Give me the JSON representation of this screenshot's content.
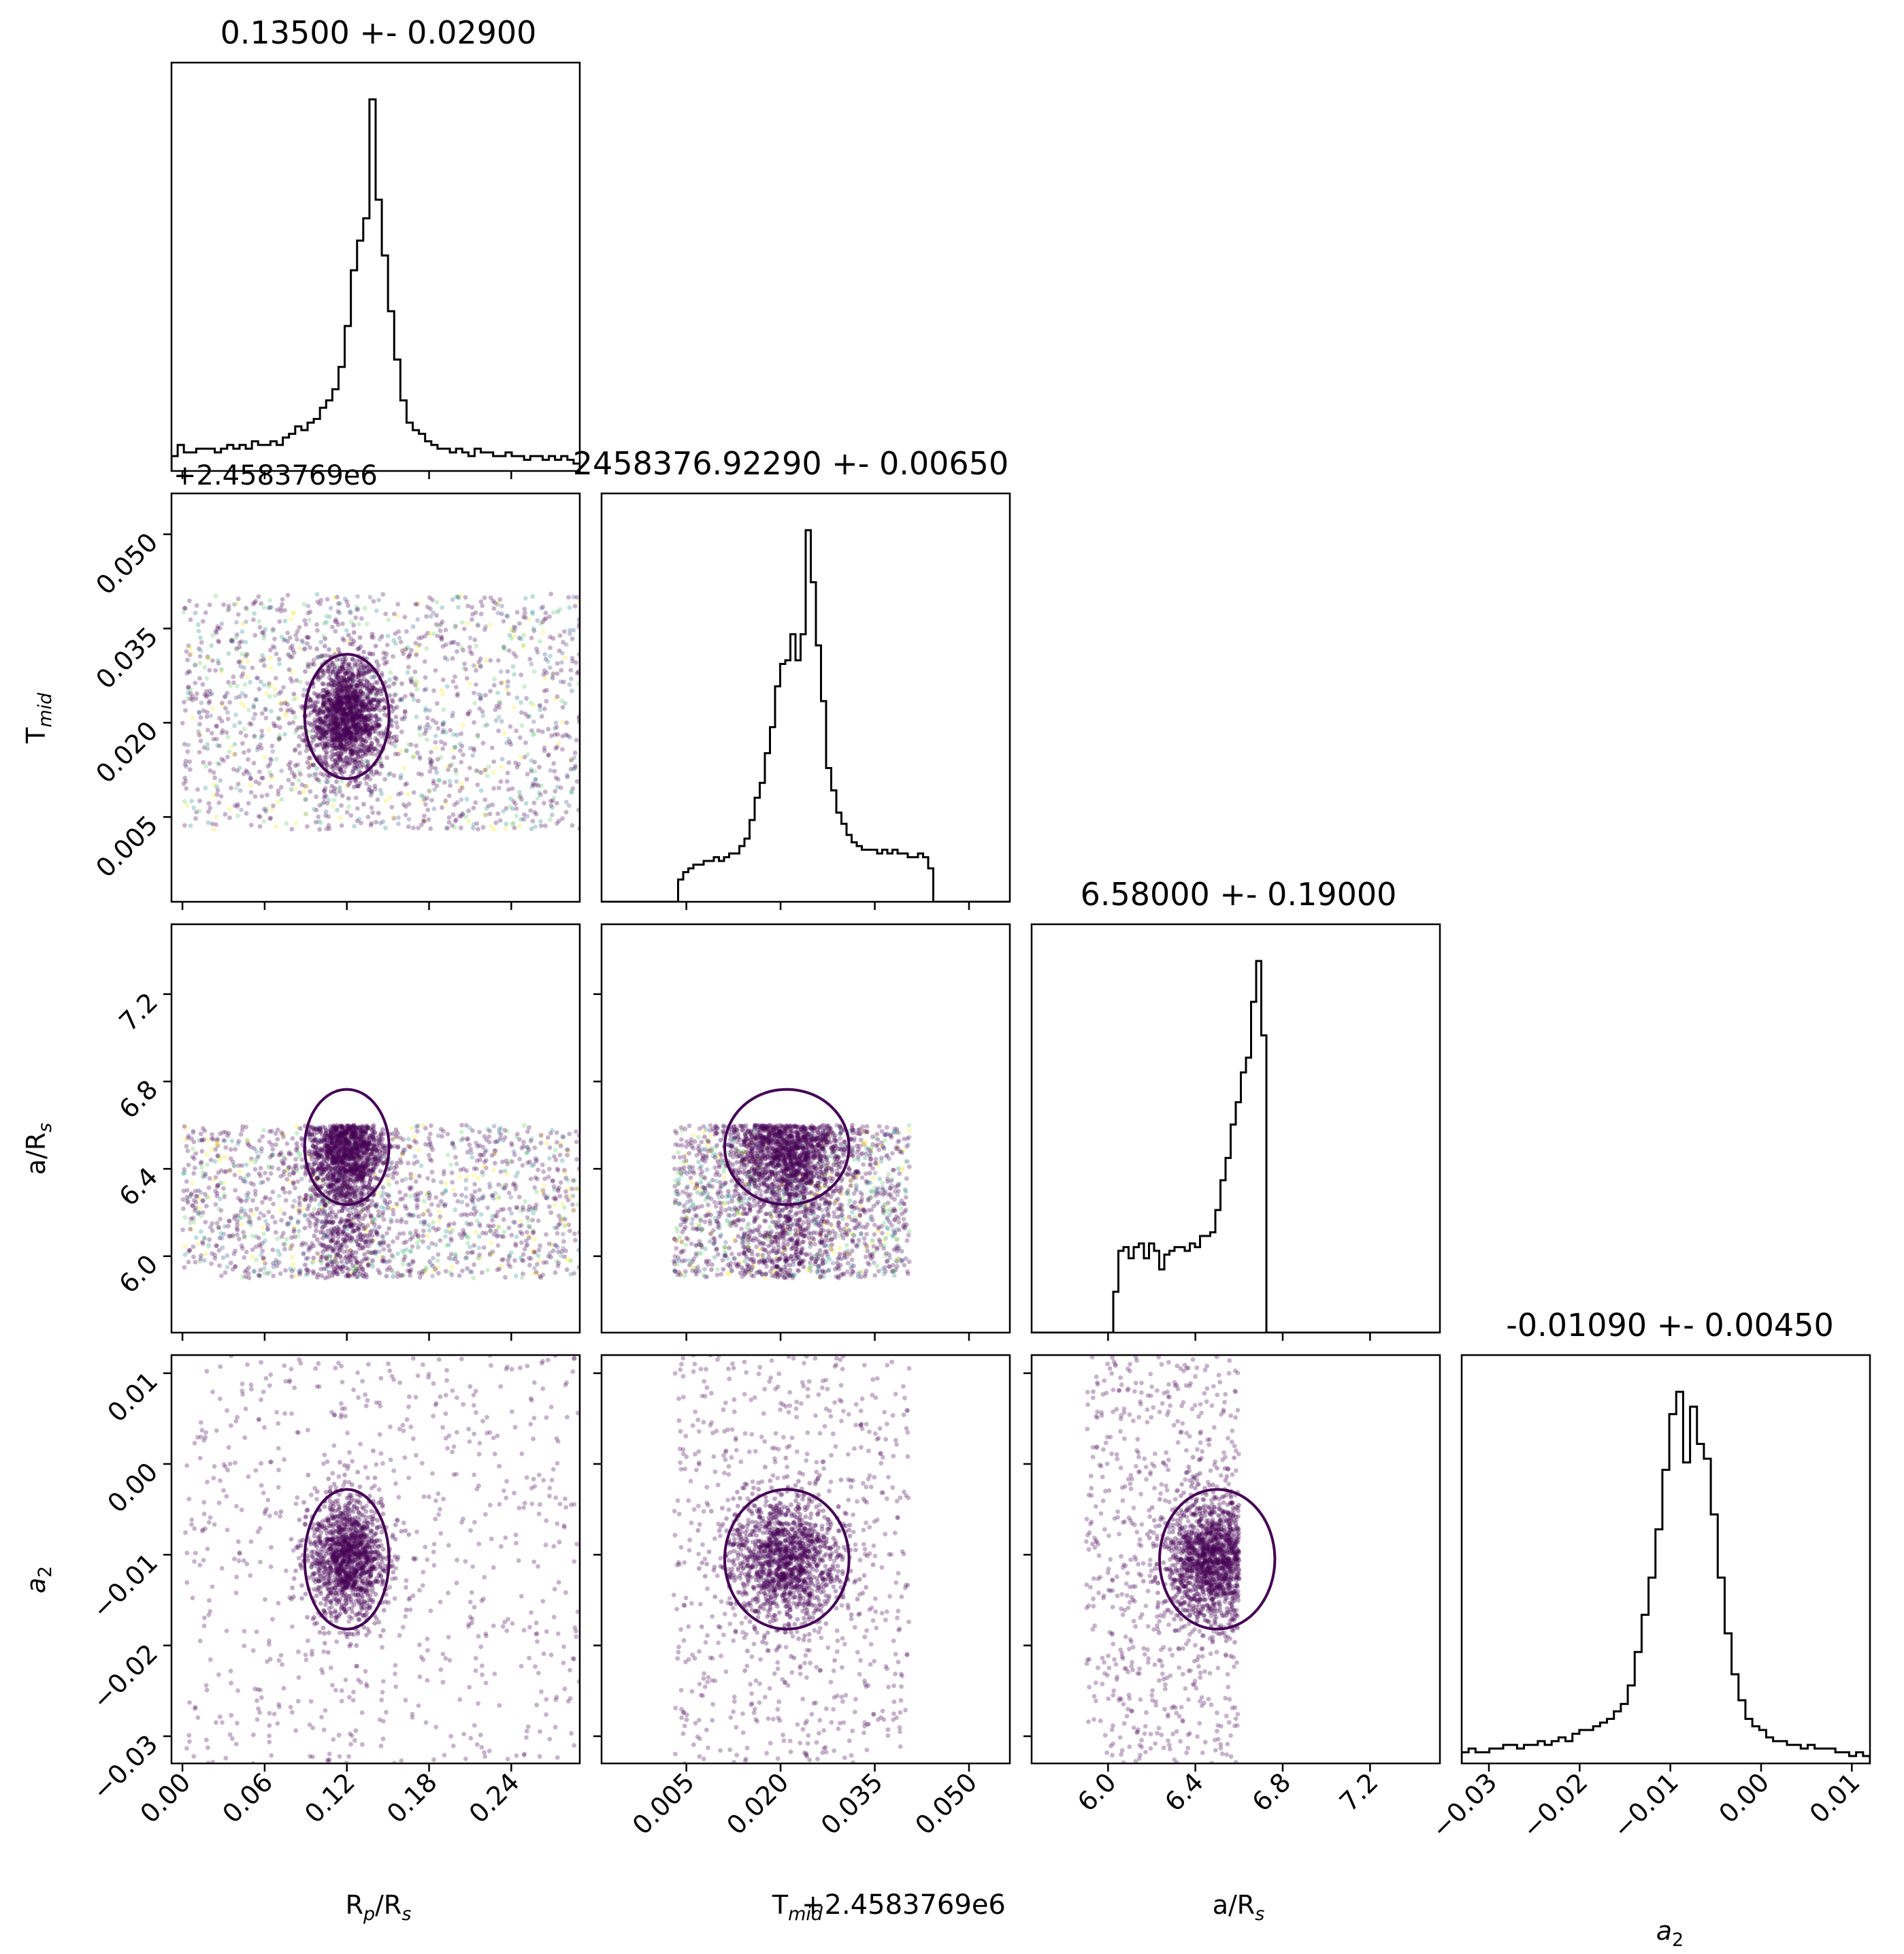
{
  "chart_data": {
    "type": "corner",
    "parameters": [
      {
        "key": "rp",
        "title": "0.13500 +- 0.02900",
        "label_main": "R",
        "label_sub": "p",
        "label_tail": "/R",
        "label_tail_sub": "s",
        "range": [
          -0.008,
          0.29
        ],
        "ticks": [
          0.0,
          0.06,
          0.12,
          0.18,
          0.24
        ],
        "tick_labels": [
          "0.00",
          "0.06",
          "0.12",
          "0.18",
          "0.24"
        ],
        "center": 0.12,
        "hist": [
          0.04,
          0.07,
          0.05,
          0.05,
          0.06,
          0.06,
          0.06,
          0.05,
          0.06,
          0.07,
          0.06,
          0.07,
          0.06,
          0.08,
          0.07,
          0.07,
          0.08,
          0.07,
          0.09,
          0.1,
          0.12,
          0.11,
          0.13,
          0.14,
          0.17,
          0.19,
          0.22,
          0.28,
          0.39,
          0.54,
          0.62,
          0.68,
          1.0,
          0.73,
          0.58,
          0.43,
          0.3,
          0.19,
          0.13,
          0.11,
          0.1,
          0.08,
          0.07,
          0.06,
          0.06,
          0.05,
          0.06,
          0.05,
          0.04,
          0.06,
          0.05,
          0.05,
          0.04,
          0.04,
          0.05,
          0.04,
          0.04,
          0.03,
          0.04,
          0.04,
          0.03,
          0.04,
          0.03,
          0.04,
          0.03,
          0.02
        ]
      },
      {
        "key": "tmid",
        "title": "2458376.92290 +- 0.00650",
        "offset": "+2.4583769e6",
        "label_main": "T",
        "label_sub": "mid",
        "label_tail": "",
        "label_tail_sub": "",
        "range": [
          -0.0085,
          0.0565
        ],
        "ticks": [
          0.005,
          0.02,
          0.035,
          0.05
        ],
        "tick_labels": [
          "0.005",
          "0.020",
          "0.035",
          "0.050"
        ],
        "center": 0.021,
        "hist": [
          0,
          0,
          0,
          0,
          0,
          0,
          0,
          0,
          0,
          0,
          0,
          0,
          0,
          0,
          0,
          0.06,
          0.08,
          0.09,
          0.1,
          0.1,
          0.11,
          0.11,
          0.12,
          0.11,
          0.12,
          0.13,
          0.13,
          0.15,
          0.17,
          0.22,
          0.28,
          0.32,
          0.4,
          0.47,
          0.58,
          0.64,
          0.65,
          0.72,
          0.65,
          0.72,
          1.0,
          0.86,
          0.69,
          0.54,
          0.36,
          0.3,
          0.24,
          0.21,
          0.18,
          0.16,
          0.15,
          0.14,
          0.14,
          0.14,
          0.13,
          0.14,
          0.13,
          0.14,
          0.13,
          0.13,
          0.12,
          0.12,
          0.13,
          0.12,
          0.09,
          0,
          0,
          0,
          0,
          0,
          0,
          0,
          0,
          0,
          0,
          0,
          0,
          0,
          0,
          0
        ]
      },
      {
        "key": "ars",
        "title": "6.58000 +- 0.19000",
        "label_main": "a/R",
        "label_sub": "",
        "label_tail": "",
        "label_tail_sub": "s",
        "range": [
          5.65,
          7.52
        ],
        "ticks": [
          6.0,
          6.4,
          6.8,
          7.2
        ],
        "tick_labels": [
          "6.0",
          "6.4",
          "6.8",
          "7.2"
        ],
        "center": 6.5,
        "hist": [
          0,
          0,
          0,
          0,
          0,
          0,
          0,
          0,
          0,
          0,
          0,
          0,
          0,
          0,
          0,
          0,
          0.11,
          0.22,
          0.23,
          0.2,
          0.23,
          0.24,
          0.2,
          0.24,
          0.22,
          0.17,
          0.21,
          0.22,
          0.23,
          0.23,
          0.22,
          0.24,
          0.23,
          0.26,
          0.26,
          0.27,
          0.33,
          0.41,
          0.47,
          0.56,
          0.62,
          0.7,
          0.74,
          0.89,
          1.0,
          0.8,
          0,
          0,
          0,
          0,
          0,
          0,
          0,
          0,
          0,
          0,
          0,
          0,
          0,
          0,
          0,
          0,
          0,
          0,
          0,
          0,
          0,
          0,
          0,
          0,
          0,
          0,
          0,
          0,
          0,
          0,
          0,
          0,
          0,
          0
        ]
      },
      {
        "key": "a2",
        "title": "-0.01090 +- 0.00450",
        "label_main": "a",
        "label_sub": "2",
        "label_tail": "",
        "label_tail_sub": "",
        "range": [
          -0.033,
          0.012
        ],
        "ticks": [
          -0.03,
          -0.02,
          -0.01,
          0.0,
          0.01
        ],
        "tick_labels": [
          "−0.03",
          "−0.02",
          "−0.01",
          "0.00",
          "0.01"
        ],
        "center": -0.0105,
        "hist": [
          0.03,
          0.04,
          0.03,
          0.03,
          0.04,
          0.04,
          0.05,
          0.05,
          0.04,
          0.05,
          0.05,
          0.06,
          0.05,
          0.06,
          0.07,
          0.06,
          0.08,
          0.09,
          0.09,
          0.1,
          0.11,
          0.12,
          0.14,
          0.16,
          0.21,
          0.3,
          0.4,
          0.5,
          0.63,
          0.79,
          0.94,
          1.0,
          0.81,
          0.96,
          0.86,
          0.82,
          0.67,
          0.5,
          0.35,
          0.24,
          0.17,
          0.12,
          0.1,
          0.09,
          0.07,
          0.06,
          0.06,
          0.05,
          0.05,
          0.04,
          0.05,
          0.04,
          0.04,
          0.04,
          0.03,
          0.03,
          0.02,
          0.03,
          0.02
        ]
      }
    ],
    "sample_colors": [
      "#440154",
      "#3b528b",
      "#21918c",
      "#5ec962",
      "#fde725"
    ],
    "contour_color": "#440154",
    "hist_color": "#000000",
    "grid": false
  }
}
